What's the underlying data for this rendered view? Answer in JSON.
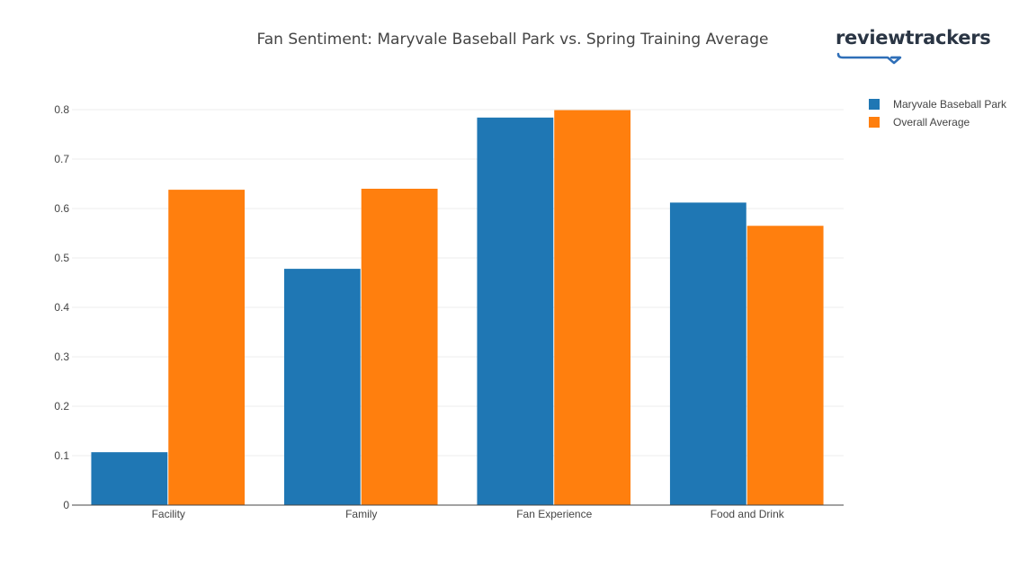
{
  "brand": {
    "name": "reviewtrackers"
  },
  "colors": {
    "series_1": "#1f77b4",
    "series_2": "#ff7f0e",
    "grid": "#eeeeee",
    "axis": "#444444"
  },
  "chart_data": {
    "type": "bar",
    "title": "Fan Sentiment: Maryvale Baseball Park vs. Spring Training Average",
    "xlabel": "",
    "ylabel": "",
    "categories": [
      "Facility",
      "Family",
      "Fan Experience",
      "Food and Drink"
    ],
    "series": [
      {
        "name": "Maryvale Baseball Park",
        "values": [
          0.107,
          0.478,
          0.784,
          0.612
        ]
      },
      {
        "name": "Overall Average",
        "values": [
          0.638,
          0.64,
          0.799,
          0.565
        ]
      }
    ],
    "ylim": [
      0,
      0.8
    ],
    "yticks": [
      "0",
      "0.1",
      "0.2",
      "0.3",
      "0.4",
      "0.5",
      "0.6",
      "0.7",
      "0.8"
    ],
    "grid": true,
    "legend_position": "top-right"
  }
}
